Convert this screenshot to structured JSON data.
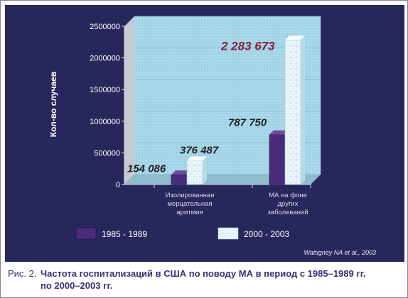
{
  "chart_data": {
    "type": "bar",
    "ylabel": "Кол-во случаев",
    "ylim": [
      0,
      2500000
    ],
    "y_ticks": [
      "2500000",
      "2000000",
      "1500000",
      "1000000",
      "500000",
      "0"
    ],
    "y_tick_values": [
      2500000,
      2000000,
      1500000,
      1000000,
      500000,
      0
    ],
    "categories": [
      [
        "Изолированная",
        "мерцательная",
        "аритмия"
      ],
      [
        "МА на фоне",
        "других",
        "заболеваний"
      ]
    ],
    "series": [
      {
        "name": "1985 - 1989",
        "values": [
          154086,
          787750
        ],
        "labels": [
          "154 086",
          "787 750"
        ],
        "color": "#4a2a7a"
      },
      {
        "name": "2000 - 2003",
        "values": [
          376487,
          2283673
        ],
        "labels": [
          "376 487",
          "2 283 673"
        ],
        "color": "#eaf6fb"
      }
    ],
    "legend_position": "bottom",
    "source_note": "Wattigney NA et al., 2003",
    "grid": true,
    "colors": {
      "plot_back": "#a8d8ea",
      "panel": "#28275c",
      "label_dark": "#222222",
      "label_highlight": "#8a1d3a"
    }
  },
  "caption": {
    "prefix": "Рис. 2.",
    "line1": "Частота госпитализаций в США по поводу МА в период с 1985–1989 гг.",
    "line2": "по 2000–2003 гг."
  }
}
